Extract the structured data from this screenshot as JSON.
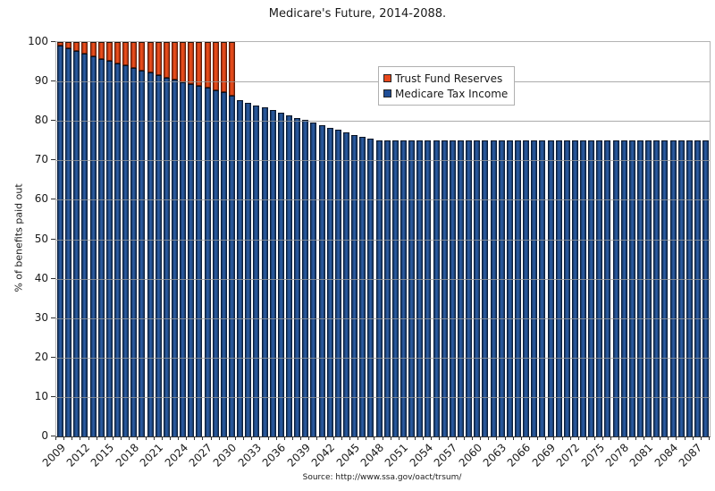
{
  "chart_data": {
    "type": "bar",
    "stacked": true,
    "title": "Medicare's Future, 2014-2088.",
    "ylabel": "% of benefits paid out",
    "source_note": "Source: http://www.ssa.gov/oact/trsum/",
    "ylim": [
      0,
      100
    ],
    "ytick_labels": [
      0,
      10,
      20,
      30,
      40,
      50,
      60,
      70,
      80,
      90,
      100
    ],
    "x_start_year": 2009,
    "x_end_year": 2088,
    "xtick_labels": [
      2009,
      2012,
      2015,
      2018,
      2021,
      2024,
      2027,
      2030,
      2033,
      2036,
      2039,
      2042,
      2045,
      2048,
      2051,
      2054,
      2057,
      2060,
      2063,
      2066,
      2069,
      2072,
      2075,
      2078,
      2081,
      2084,
      2087
    ],
    "grid": "horizontal",
    "legend_position": "upper-middle-inside",
    "colors": {
      "trust_fund_reserves": "#e8481c",
      "medicare_tax_income": "#1f4e96",
      "gridline": "#969696",
      "plot_border": "#b3b3b3"
    },
    "series": [
      {
        "name": "Trust Fund Reserves",
        "color": "#e8481c",
        "values": [
          1,
          1.6,
          2.2,
          2.9,
          3.6,
          4.2,
          4.8,
          5.4,
          6,
          6.6,
          7.2,
          7.8,
          8.4,
          9,
          9.6,
          10.1,
          10.6,
          11.1,
          11.6,
          12.2,
          12.8,
          13.6,
          0,
          0,
          0,
          0,
          0,
          0,
          0,
          0,
          0,
          0,
          0,
          0,
          0,
          0,
          0,
          0,
          0,
          0,
          0,
          0,
          0,
          0,
          0,
          0,
          0,
          0,
          0,
          0,
          0,
          0,
          0,
          0,
          0,
          0,
          0,
          0,
          0,
          0,
          0,
          0,
          0,
          0,
          0,
          0,
          0,
          0,
          0,
          0,
          0,
          0,
          0,
          0,
          0,
          0,
          0,
          0,
          0,
          0
        ]
      },
      {
        "name": "Medicare Tax Income",
        "color": "#1f4e96",
        "values": [
          99,
          98.4,
          97.8,
          97.1,
          96.4,
          95.8,
          95.2,
          94.6,
          94,
          93.4,
          92.8,
          92.2,
          91.6,
          91,
          90.4,
          89.9,
          89.4,
          88.9,
          88.4,
          87.8,
          87.2,
          86.4,
          85.2,
          84.6,
          84,
          83.4,
          82.8,
          82.1,
          81.5,
          80.8,
          80.2,
          79.5,
          78.9,
          78.3,
          77.7,
          77.1,
          76.5,
          76,
          75.5,
          75.1,
          75,
          75,
          75,
          75,
          75,
          75,
          75,
          75,
          75,
          75,
          75,
          75,
          75,
          75,
          75,
          75,
          75,
          75,
          75,
          75,
          75,
          75,
          75,
          75,
          75,
          75,
          75,
          75,
          75,
          75,
          75,
          75,
          75,
          75,
          75,
          75,
          75,
          75,
          75,
          75
        ]
      }
    ]
  }
}
